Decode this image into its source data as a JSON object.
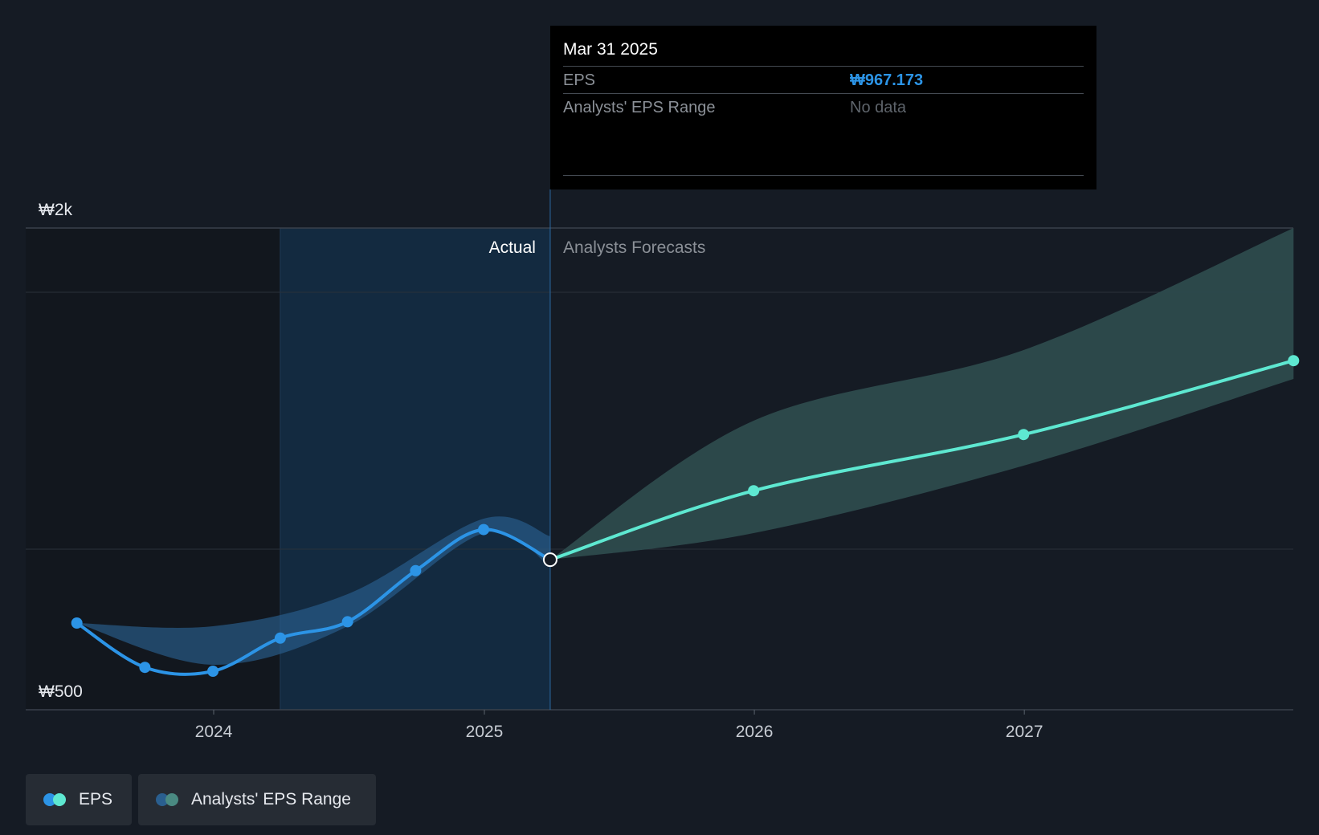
{
  "chart_data": {
    "type": "line",
    "currency_symbol": "₩",
    "y_tick_labels": [
      "₩2k",
      "₩500"
    ],
    "ylim": [
      500,
      2000
    ],
    "x_tick_labels": [
      "2024",
      "2025",
      "2026",
      "2027"
    ],
    "section_labels": {
      "actual": "Actual",
      "forecast": "Analysts Forecasts"
    },
    "series": [
      {
        "name": "EPS",
        "kind": "actual",
        "points": [
          {
            "x": "2023-06-30",
            "y": 770
          },
          {
            "x": "2023-09-30",
            "y": 632
          },
          {
            "x": "2023-12-31",
            "y": 620
          },
          {
            "x": "2024-03-31",
            "y": 723
          },
          {
            "x": "2024-06-30",
            "y": 774
          },
          {
            "x": "2024-09-30",
            "y": 933
          },
          {
            "x": "2024-12-31",
            "y": 1061
          },
          {
            "x": "2025-03-31",
            "y": 967.173
          }
        ]
      },
      {
        "name": "EPS",
        "kind": "forecast",
        "points": [
          {
            "x": "2025-03-31",
            "y": 967.173
          },
          {
            "x": "2025-12-31",
            "y": 1182
          },
          {
            "x": "2026-12-31",
            "y": 1357
          },
          {
            "x": "2027-12-31",
            "y": 1587
          }
        ]
      }
    ],
    "range_band_actual": [
      {
        "x": "2023-06-30",
        "low": 770,
        "high": 770
      },
      {
        "x": "2023-12-31",
        "low": 640,
        "high": 760
      },
      {
        "x": "2024-06-30",
        "low": 760,
        "high": 860
      },
      {
        "x": "2024-12-31",
        "low": 1050,
        "high": 1095
      },
      {
        "x": "2025-03-31",
        "low": 945,
        "high": 1040
      }
    ],
    "range_band_forecast": [
      {
        "x": "2025-03-31",
        "low": 967.173,
        "high": 967.173
      },
      {
        "x": "2025-12-31",
        "low": 1050,
        "high": 1400
      },
      {
        "x": "2026-12-31",
        "low": 1260,
        "high": 1620
      },
      {
        "x": "2027-12-31",
        "low": 1530,
        "high": 2000
      }
    ],
    "grid": true,
    "legend_position": "bottom-left",
    "colors": {
      "actual": "#2c94e6",
      "forecast": "#5ee8d1",
      "band_actual": "#2a5f8f",
      "band_forecast": "#2d4b4d"
    }
  },
  "tooltip": {
    "date": "Mar 31 2025",
    "eps_label": "EPS",
    "eps_value": "₩967.173",
    "range_label": "Analysts' EPS Range",
    "range_value": "No data"
  },
  "legend": {
    "items": [
      {
        "label": "EPS",
        "colors": [
          "#2c94e6",
          "#5ee8d1"
        ]
      },
      {
        "label": "Analysts' EPS Range",
        "colors": [
          "#2a5f8f",
          "#4a8a82"
        ]
      }
    ]
  }
}
